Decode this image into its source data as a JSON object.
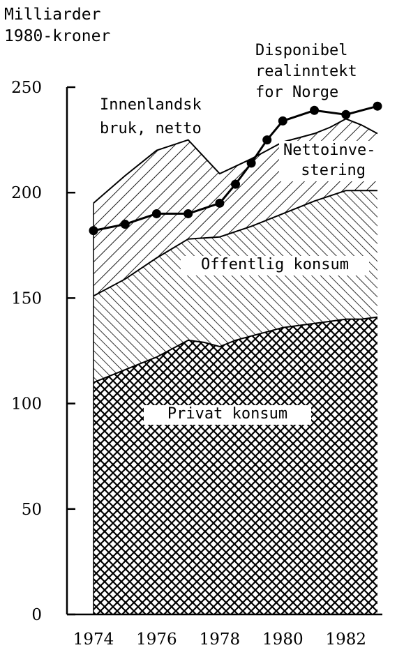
{
  "chart_data": {
    "type": "area",
    "ylabel_lines": [
      "Milliarder",
      "1980-kroner"
    ],
    "ylim": [
      0,
      250
    ],
    "yticks": [
      0,
      50,
      100,
      150,
      200,
      250
    ],
    "xlim": [
      1974,
      1983
    ],
    "xticks": [
      1974,
      1976,
      1978,
      1980,
      1982
    ],
    "stacked_series": [
      {
        "name": "Privat konsum",
        "x": [
          1974,
          1974.5,
          1975,
          1975.5,
          1976,
          1976.5,
          1977,
          1977.5,
          1978,
          1978.5,
          1979,
          1979.5,
          1980,
          1980.5,
          1981,
          1981.5,
          1982,
          1982.5,
          1983
        ],
        "y": [
          110,
          113,
          116,
          119,
          122,
          126,
          130,
          129,
          127,
          130,
          132,
          134,
          136,
          137,
          138,
          139,
          140,
          140,
          141
        ]
      },
      {
        "name": "Offentlig konsum",
        "x": [
          1974,
          1975,
          1976,
          1977,
          1978,
          1979,
          1980,
          1981,
          1982,
          1983
        ],
        "y": [
          151,
          159,
          169,
          178,
          179,
          184,
          190,
          196,
          201,
          201
        ]
      },
      {
        "name": "Nettoinvestering",
        "x": [
          1974,
          1975,
          1976,
          1977,
          1977.5,
          1978,
          1979,
          1979.5,
          1980,
          1980.5,
          1981,
          1981.5,
          1982,
          1982.5,
          1983
        ],
        "y": [
          195,
          208,
          220,
          225,
          217,
          209,
          216,
          220,
          224,
          226,
          228,
          231,
          235,
          232,
          228
        ]
      }
    ],
    "line_series": {
      "name": "Disponibel realinntekt for Norge",
      "x": [
        1974,
        1975,
        1976,
        1977,
        1978,
        1978.5,
        1979,
        1979.5,
        1980,
        1981,
        1982,
        1983
      ],
      "y": [
        182,
        185,
        190,
        190,
        195,
        204,
        214,
        225,
        234,
        239,
        237,
        241
      ]
    },
    "annotations": {
      "innenlandsk": [
        "Innenlandsk",
        "bruk, netto"
      ],
      "disponibel": [
        "Disponibel",
        "realinntekt",
        "for Norge"
      ],
      "nettoinvestering": [
        "Nettoinve-",
        "stering"
      ],
      "offentlig": "Offentlig konsum",
      "privat": "Privat konsum"
    }
  }
}
